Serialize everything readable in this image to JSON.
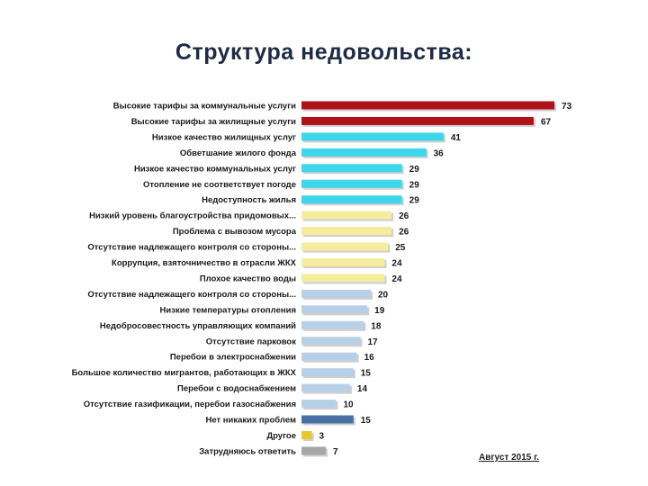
{
  "title": "Структура недовольства:",
  "footnote": "Август 2015 г.",
  "chart_data": {
    "type": "bar",
    "orientation": "horizontal",
    "title": "Структура недовольства:",
    "xlabel": "",
    "ylabel": "",
    "grid": false,
    "categories": [
      "Высокие тарифы за коммунальные услуги",
      "Высокие тарифы за жилищные услуги",
      "Низкое качество жилищных услуг",
      "Обветшание жилого фонда",
      "Низкое качество коммунальных услуг",
      "Отопление не соответствует погоде",
      "Недоступность жилья",
      "Низкий уровень благоустройства придомовых...",
      "Проблема с вывозом мусора",
      "Отсутствие надлежащего контроля со стороны...",
      "Коррупция, взяточничество в отрасли ЖКХ",
      "Плохое качество воды",
      "Отсутствие надлежащего контроля со стороны...",
      "Низкие температуры отопления",
      "Недобросовестность управляющих компаний",
      "Отсутствие парковок",
      "Перебои в электроснабжении",
      "Большое количество мигрантов, работающих в ЖКХ",
      "Перебои с водоснабжением",
      "Отсутствие газификации, перебои газоснабжения",
      "Нет никаких проблем",
      "Другое",
      "Затрудняюсь ответить"
    ],
    "values": [
      73,
      67,
      41,
      36,
      29,
      29,
      29,
      26,
      26,
      25,
      24,
      24,
      20,
      19,
      18,
      17,
      16,
      15,
      14,
      10,
      15,
      3,
      7
    ],
    "colors": [
      "#b0121b",
      "#b0121b",
      "#3dd6ea",
      "#3dd6ea",
      "#3dd6ea",
      "#3dd6ea",
      "#3dd6ea",
      "#f6ec9e",
      "#f6ec9e",
      "#f6ec9e",
      "#f6ec9e",
      "#f6ec9e",
      "#b7d0e6",
      "#b7d0e6",
      "#b7d0e6",
      "#b7d0e6",
      "#b7d0e6",
      "#b7d0e6",
      "#b7d0e6",
      "#b7d0e6",
      "#4a6fa5",
      "#e7c72a",
      "#a6a6a6"
    ]
  }
}
